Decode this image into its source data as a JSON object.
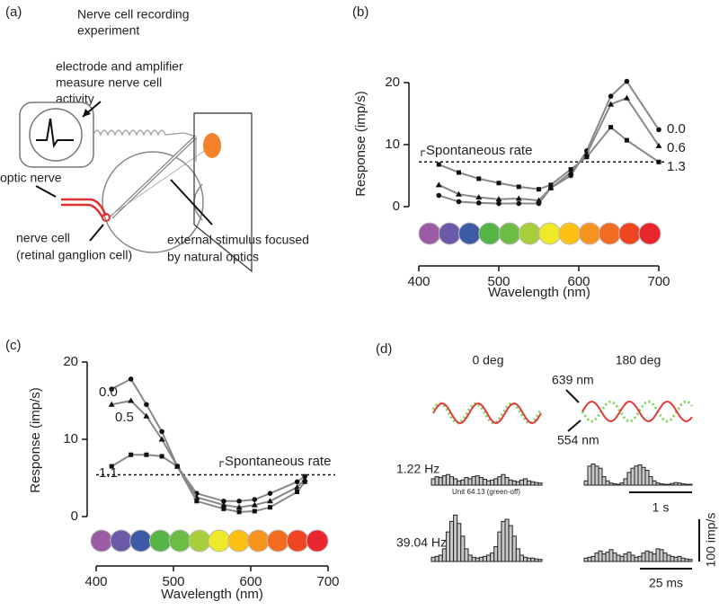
{
  "panel_a": {
    "label": "(a)",
    "title": [
      "Nerve cell recording",
      "experiment"
    ],
    "electrode": [
      "electrode and amplifier",
      "measure nerve cell",
      "activity"
    ],
    "optic_nerve": "optic nerve",
    "nerve_cell": [
      "nerve cell",
      "(retinal ganglion cell)"
    ],
    "stimulus": [
      "external stimulus focused",
      "by natural optics"
    ]
  },
  "chart_data": [
    {
      "type": "line",
      "panel_label": "(b)",
      "x_label": "Wavelength (nm)",
      "y_label": "Response (imp/s)",
      "xlim": [
        400,
        700
      ],
      "xticks": [
        400,
        500,
        600,
        700
      ],
      "ylim": [
        0,
        21
      ],
      "yticks": [
        0,
        10,
        20
      ],
      "reference_line": {
        "label": "Spontaneous rate",
        "value": 7.2
      },
      "x": [
        425,
        450,
        475,
        500,
        525,
        550,
        565,
        590,
        610,
        640,
        660,
        700
      ],
      "series": [
        {
          "name": "0.0",
          "color": "#888888",
          "marker": "circle",
          "values": [
            1.8,
            0.8,
            0.6,
            0.5,
            0.5,
            0.5,
            3.0,
            5.0,
            9.0,
            17.8,
            20.2,
            12.4
          ]
        },
        {
          "name": "0.6",
          "color": "#888888",
          "marker": "triangle",
          "values": [
            3.5,
            2.0,
            1.5,
            1.2,
            1.3,
            1.0,
            3.0,
            5.5,
            8.5,
            16.5,
            17.5,
            9.8
          ]
        },
        {
          "name": "1.3",
          "color": "#888888",
          "marker": "square",
          "values": [
            6.8,
            5.5,
            4.5,
            3.8,
            3.2,
            2.8,
            3.5,
            6.0,
            8.0,
            12.8,
            10.7,
            7.2
          ]
        }
      ],
      "stimulus_colors": [
        "#9b5ba5",
        "#6a5aa8",
        "#3c5aa6",
        "#57b447",
        "#6cbd45",
        "#a8cf3b",
        "#eeea2a",
        "#fdc010",
        "#f7941d",
        "#f36c21",
        "#ef4523",
        "#e8262d"
      ]
    },
    {
      "type": "line",
      "panel_label": "(c)",
      "x_label": "Wavelength (nm)",
      "y_label": "Response (imp/s)",
      "xlim": [
        400,
        700
      ],
      "xticks": [
        400,
        500,
        600,
        700
      ],
      "ylim": [
        0,
        20
      ],
      "yticks": [
        0,
        10,
        20
      ],
      "reference_line": {
        "label": "Spontaneous rate",
        "value": 5.4
      },
      "x": [
        420,
        445,
        465,
        485,
        505,
        530,
        565,
        585,
        605,
        625,
        660,
        670
      ],
      "series": [
        {
          "name": "0.0",
          "color": "#888888",
          "marker": "circle",
          "values": [
            16.5,
            17.8,
            14.5,
            11.0,
            6.5,
            3.0,
            2.0,
            2.0,
            2.2,
            3.0,
            4.5,
            5.2
          ]
        },
        {
          "name": "0.5",
          "color": "#888888",
          "marker": "triangle",
          "values": [
            14.5,
            15.0,
            13.0,
            10.0,
            6.5,
            2.5,
            1.5,
            1.2,
            1.5,
            2.0,
            3.8,
            4.8
          ]
        },
        {
          "name": "1.1",
          "color": "#888888",
          "marker": "square",
          "values": [
            6.5,
            8.0,
            8.0,
            7.8,
            6.5,
            2.0,
            1.0,
            0.6,
            0.7,
            1.2,
            3.2,
            4.5
          ]
        }
      ],
      "stimulus_colors": [
        "#9b5ba5",
        "#6a5aa8",
        "#3c5aa6",
        "#57b447",
        "#6cbd45",
        "#a8cf3b",
        "#eeea2a",
        "#fdc010",
        "#f7941d",
        "#f36c21",
        "#ef4523",
        "#e8262d"
      ]
    }
  ],
  "panel_d": {
    "label": "(d)",
    "col1": "0 deg",
    "col2": "180 deg",
    "wl1": "639 nm",
    "wl2": "554 nm",
    "f1": "1.22 Hz",
    "unit": "Unit 64.13 (green-off)",
    "scale1": "1 s",
    "f2": "39.04 Hz",
    "scale_y": "100 imp/s",
    "scale2": "25 ms",
    "histograms": [
      {
        "counts": [
          15,
          20,
          18,
          22,
          25,
          20,
          15,
          10,
          12,
          18,
          15,
          20,
          22,
          18,
          14,
          10,
          12,
          15,
          20,
          25,
          18,
          12,
          10,
          8,
          12,
          15,
          10,
          8,
          6,
          5
        ]
      },
      {
        "counts": [
          10,
          45,
          50,
          45,
          40,
          20,
          10,
          5,
          3,
          2,
          5,
          15,
          30,
          40,
          45,
          48,
          42,
          35,
          20,
          10,
          5,
          3,
          2,
          2,
          4,
          6,
          5,
          3,
          2,
          2
        ]
      },
      {
        "counts": [
          10,
          12,
          15,
          30,
          70,
          95,
          110,
          90,
          60,
          30,
          15,
          10,
          8,
          10,
          12,
          15,
          20,
          35,
          70,
          95,
          100,
          85,
          60,
          30,
          15,
          10,
          8,
          8,
          6,
          5
        ]
      },
      {
        "counts": [
          8,
          10,
          12,
          20,
          25,
          18,
          22,
          28,
          20,
          15,
          12,
          18,
          22,
          15,
          10,
          12,
          20,
          25,
          22,
          18,
          30,
          28,
          20,
          15,
          12,
          10,
          12,
          8,
          6,
          5
        ]
      }
    ]
  }
}
